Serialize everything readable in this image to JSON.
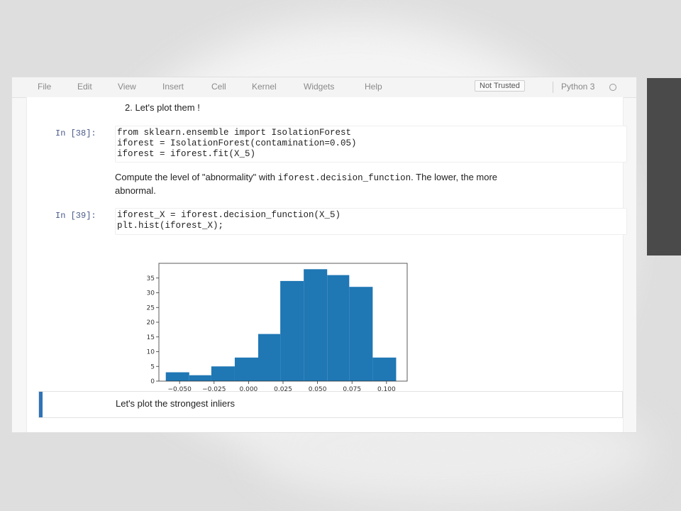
{
  "menubar": {
    "items": [
      "File",
      "Edit",
      "View",
      "Insert",
      "Cell",
      "Kernel",
      "Widgets",
      "Help"
    ],
    "trust_label": "Not Trusted",
    "kernel_label": "Python 3"
  },
  "cells": {
    "md_plot": "2. Let's plot them !",
    "cell38": {
      "prompt": "In [38]:",
      "lines": [
        "from sklearn.ensemble import IsolationForest",
        "iforest = IsolationForest(contamination=0.05)",
        "iforest = iforest.fit(X_5)"
      ]
    },
    "md_compute": {
      "text_before": "Compute the level of \"abnormality\" with ",
      "code": "iforest.decision_function",
      "text_after": ". The lower, the more",
      "line2": "abnormal."
    },
    "cell39": {
      "prompt": "In [39]:",
      "lines": [
        "iforest_X = iforest.decision_function(X_5)",
        "plt.hist(iforest_X);"
      ]
    },
    "md_inliers": "Let's plot the strongest inliers"
  },
  "chart_data": {
    "type": "bar",
    "bin_edges": [
      -0.06,
      -0.043,
      -0.027,
      -0.01,
      0.007,
      0.023,
      0.04,
      0.057,
      0.073,
      0.09,
      0.107
    ],
    "values": [
      3,
      2,
      5,
      8,
      16,
      34,
      38,
      36,
      32,
      8
    ],
    "x_ticks": [
      "−0.050",
      "−0.025",
      "0.000",
      "0.025",
      "0.050",
      "0.075",
      "0.100"
    ],
    "x_tick_values": [
      -0.05,
      -0.025,
      0.0,
      0.025,
      0.05,
      0.075,
      0.1
    ],
    "y_ticks": [
      0,
      5,
      10,
      15,
      20,
      25,
      30,
      35
    ],
    "xlim": [
      -0.065,
      0.115
    ],
    "ylim": [
      0,
      40
    ],
    "bar_color": "#1f77b4",
    "title": "",
    "xlabel": "",
    "ylabel": ""
  },
  "colors": {
    "prompt": "#4a5a8a",
    "selected_bar": "#2f73b8"
  }
}
